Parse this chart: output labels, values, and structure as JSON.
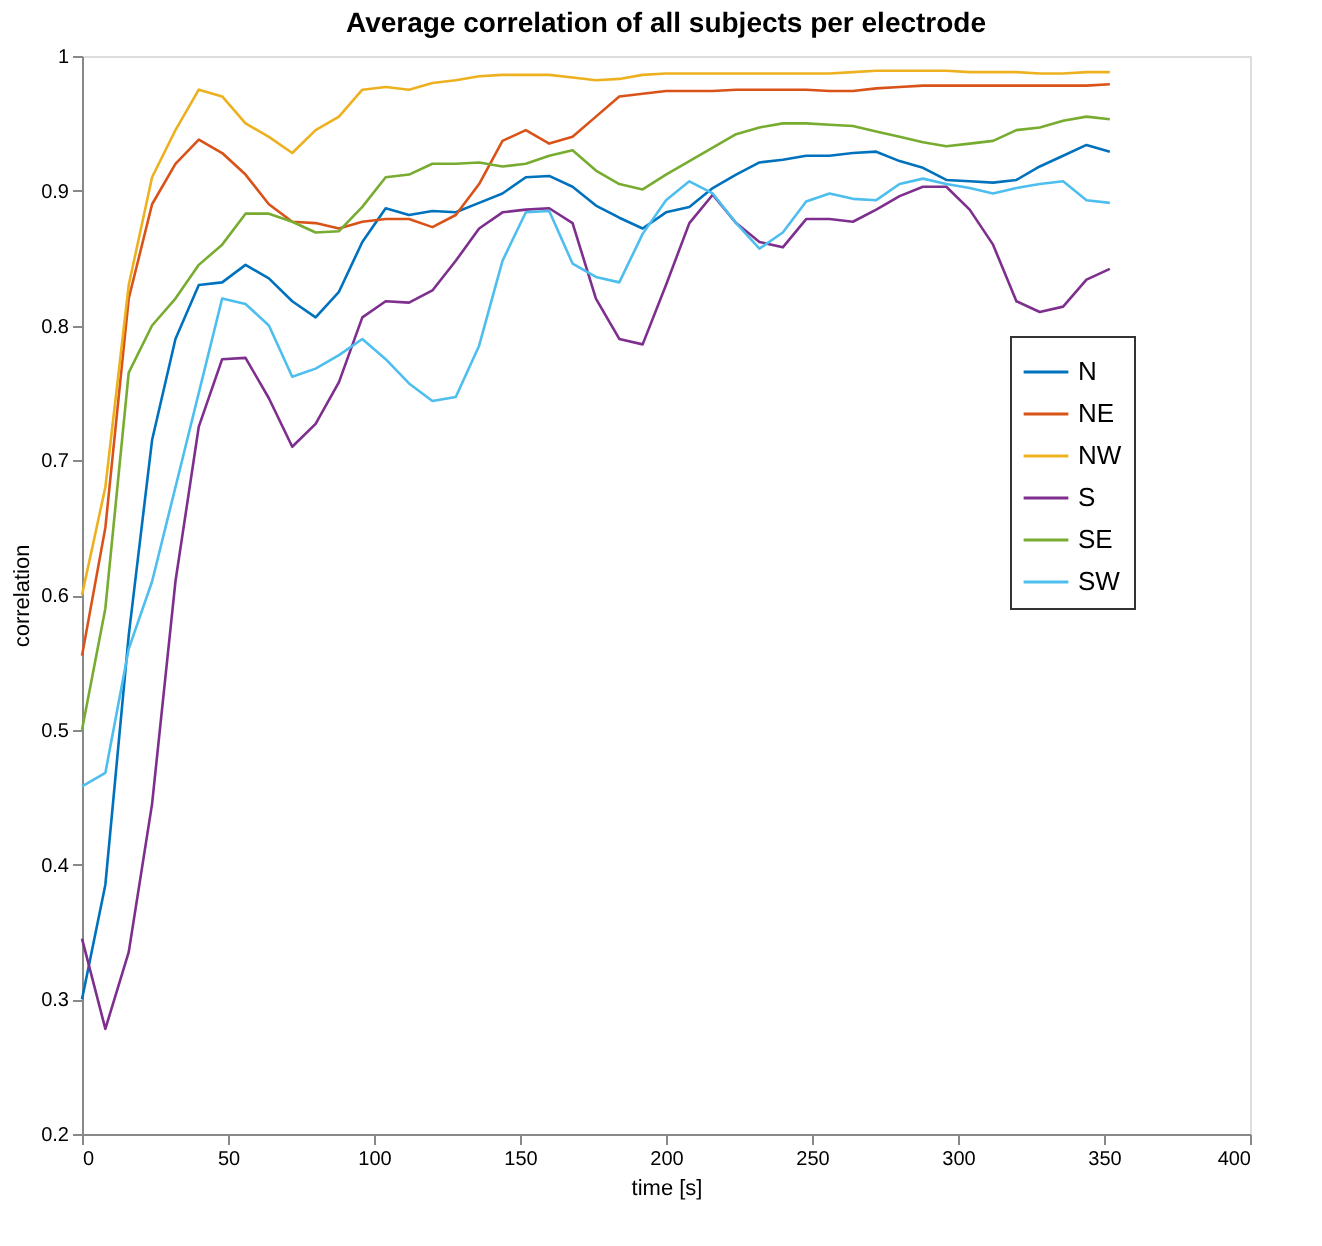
{
  "chart_data": {
    "type": "line",
    "title": "Average correlation of all subjects per electrode",
    "xlabel": "time [s]",
    "ylabel": "correlation",
    "x": [
      0,
      8,
      16,
      24,
      32,
      40,
      48,
      56,
      64,
      72,
      80,
      88,
      96,
      104,
      112,
      120,
      128,
      136,
      144,
      152,
      160,
      168,
      176,
      184,
      192,
      200,
      208,
      216,
      224,
      232,
      240,
      248,
      256,
      264,
      272,
      280,
      288,
      296,
      304,
      312,
      320,
      328,
      336,
      344,
      352
    ],
    "series": [
      {
        "name": "N",
        "color": "#0072bd",
        "values": [
          0.3,
          0.385,
          0.57,
          0.715,
          0.79,
          0.83,
          0.832,
          0.845,
          0.835,
          0.818,
          0.806,
          0.825,
          0.862,
          0.887,
          0.882,
          0.885,
          0.884,
          0.891,
          0.898,
          0.91,
          0.911,
          0.903,
          0.889,
          0.88,
          0.872,
          0.884,
          0.888,
          0.902,
          0.912,
          0.921,
          0.923,
          0.926,
          0.926,
          0.928,
          0.929,
          0.922,
          0.917,
          0.908,
          0.907,
          0.906,
          0.908,
          0.918,
          0.926,
          0.934,
          0.929
        ]
      },
      {
        "name": "NE",
        "color": "#d95319",
        "values": [
          0.555,
          0.65,
          0.82,
          0.89,
          0.92,
          0.938,
          0.928,
          0.912,
          0.89,
          0.877,
          0.876,
          0.872,
          0.877,
          0.879,
          0.879,
          0.873,
          0.882,
          0.905,
          0.937,
          0.945,
          0.935,
          0.94,
          0.955,
          0.97,
          0.972,
          0.974,
          0.974,
          0.974,
          0.975,
          0.975,
          0.975,
          0.975,
          0.974,
          0.974,
          0.976,
          0.977,
          0.978,
          0.978,
          0.978,
          0.978,
          0.978,
          0.978,
          0.978,
          0.978,
          0.979
        ]
      },
      {
        "name": "NW",
        "color": "#edb120",
        "values": [
          0.6,
          0.68,
          0.83,
          0.91,
          0.945,
          0.975,
          0.97,
          0.95,
          0.94,
          0.928,
          0.945,
          0.955,
          0.975,
          0.977,
          0.975,
          0.98,
          0.982,
          0.985,
          0.986,
          0.986,
          0.986,
          0.984,
          0.982,
          0.983,
          0.986,
          0.987,
          0.987,
          0.987,
          0.987,
          0.987,
          0.987,
          0.987,
          0.987,
          0.988,
          0.989,
          0.989,
          0.989,
          0.989,
          0.988,
          0.988,
          0.988,
          0.987,
          0.987,
          0.988,
          0.988
        ]
      },
      {
        "name": "S",
        "color": "#7e2f8e",
        "values": [
          0.345,
          0.278,
          0.335,
          0.445,
          0.61,
          0.725,
          0.775,
          0.776,
          0.746,
          0.71,
          0.727,
          0.758,
          0.806,
          0.818,
          0.817,
          0.826,
          0.848,
          0.872,
          0.884,
          0.886,
          0.887,
          0.876,
          0.82,
          0.79,
          0.786,
          0.83,
          0.876,
          0.897,
          0.876,
          0.862,
          0.858,
          0.879,
          0.879,
          0.877,
          0.886,
          0.896,
          0.903,
          0.903,
          0.886,
          0.86,
          0.818,
          0.81,
          0.814,
          0.834,
          0.842
        ]
      },
      {
        "name": "SE",
        "color": "#77ac30",
        "values": [
          0.5,
          0.59,
          0.765,
          0.8,
          0.82,
          0.845,
          0.86,
          0.883,
          0.883,
          0.877,
          0.869,
          0.87,
          0.888,
          0.91,
          0.912,
          0.92,
          0.92,
          0.921,
          0.918,
          0.92,
          0.926,
          0.93,
          0.915,
          0.905,
          0.901,
          0.912,
          0.922,
          0.932,
          0.942,
          0.947,
          0.95,
          0.95,
          0.949,
          0.948,
          0.944,
          0.94,
          0.936,
          0.933,
          0.935,
          0.937,
          0.945,
          0.947,
          0.952,
          0.955,
          0.953
        ]
      },
      {
        "name": "SW",
        "color": "#4dbeee",
        "values": [
          0.458,
          0.468,
          0.56,
          0.61,
          0.68,
          0.75,
          0.82,
          0.816,
          0.8,
          0.762,
          0.768,
          0.778,
          0.79,
          0.775,
          0.757,
          0.744,
          0.747,
          0.785,
          0.848,
          0.884,
          0.885,
          0.846,
          0.836,
          0.832,
          0.868,
          0.893,
          0.907,
          0.898,
          0.876,
          0.857,
          0.869,
          0.892,
          0.898,
          0.894,
          0.893,
          0.905,
          0.909,
          0.905,
          0.902,
          0.898,
          0.902,
          0.905,
          0.907,
          0.893,
          0.891
        ]
      }
    ],
    "xlim": [
      0,
      400
    ],
    "xticks": [
      0,
      50,
      100,
      150,
      200,
      250,
      300,
      350,
      400
    ],
    "ylim": [
      0.2,
      1
    ],
    "yticks": [
      0.2,
      0.3,
      0.4,
      0.5,
      0.6,
      0.7,
      0.8,
      0.9,
      1
    ],
    "grid": false,
    "legend": "right",
    "line_style": "solid",
    "marker": "none"
  }
}
